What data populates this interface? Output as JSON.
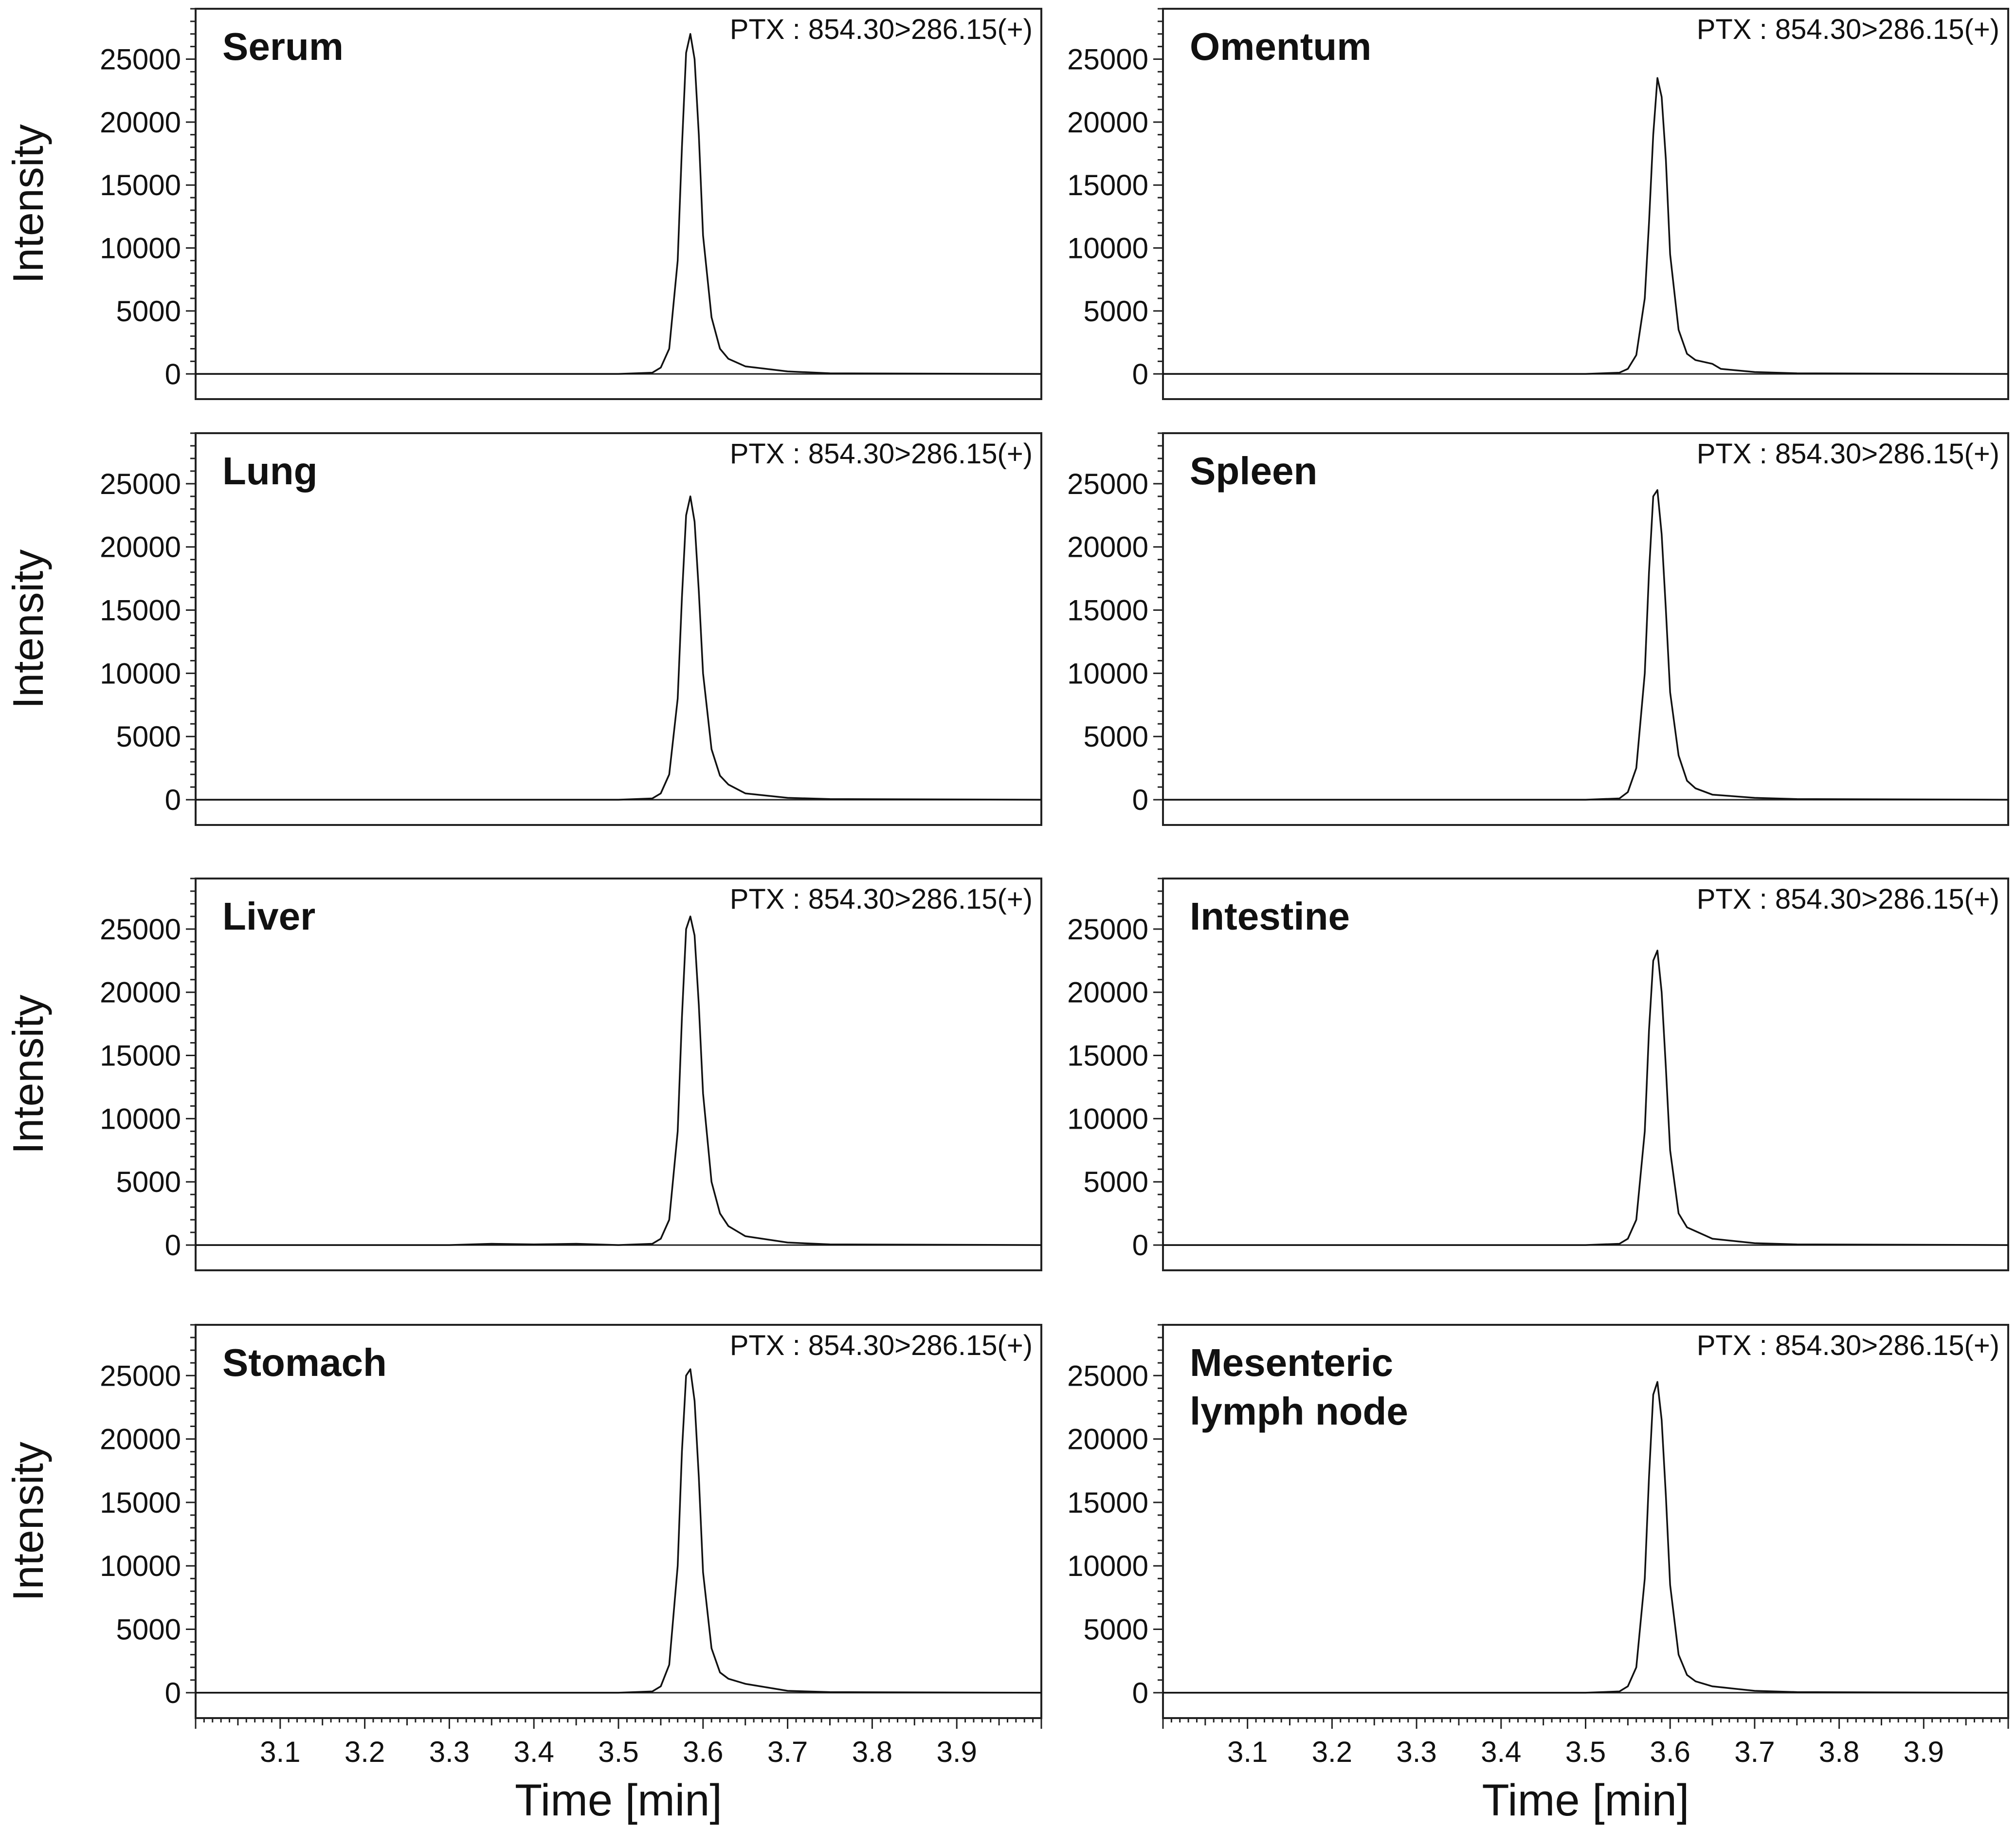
{
  "chart_data": [
    {
      "type": "line",
      "title": "Serum",
      "annotation": "PTX : 854.30>286.15(+)",
      "ylabel": "Intensity",
      "xlabel": "",
      "yticks": [
        0,
        5000,
        10000,
        15000,
        20000,
        25000
      ],
      "xticks": [
        3.1,
        3.2,
        3.3,
        3.4,
        3.5,
        3.6,
        3.7,
        3.8,
        3.9
      ],
      "xlim": [
        3.0,
        4.0
      ],
      "ylim": [
        -2000,
        29000
      ],
      "series": [
        {
          "x": [
            3.0,
            3.5,
            3.54,
            3.55,
            3.56,
            3.57,
            3.575,
            3.58,
            3.585,
            3.59,
            3.595,
            3.6,
            3.61,
            3.62,
            3.63,
            3.65,
            3.7,
            3.75,
            4.0
          ],
          "y": [
            0,
            0,
            100,
            500,
            2000,
            9000,
            18000,
            25500,
            27000,
            25000,
            19000,
            11000,
            4500,
            2000,
            1200,
            600,
            200,
            50,
            0
          ]
        }
      ]
    },
    {
      "type": "line",
      "title": "Omentum",
      "annotation": "PTX : 854.30>286.15(+)",
      "ylabel": "",
      "xlabel": "",
      "yticks": [
        0,
        5000,
        10000,
        15000,
        20000,
        25000
      ],
      "xticks": [
        3.1,
        3.2,
        3.3,
        3.4,
        3.5,
        3.6,
        3.7,
        3.8,
        3.9
      ],
      "xlim": [
        3.0,
        4.0
      ],
      "ylim": [
        -2000,
        29000
      ],
      "series": [
        {
          "x": [
            3.0,
            3.5,
            3.54,
            3.55,
            3.56,
            3.57,
            3.575,
            3.58,
            3.585,
            3.59,
            3.595,
            3.6,
            3.61,
            3.62,
            3.63,
            3.65,
            3.66,
            3.7,
            3.75,
            4.0
          ],
          "y": [
            0,
            0,
            100,
            400,
            1500,
            6000,
            12000,
            19000,
            23500,
            22000,
            17000,
            9500,
            3500,
            1600,
            1100,
            800,
            400,
            150,
            50,
            0
          ]
        }
      ]
    },
    {
      "type": "line",
      "title": "Lung",
      "annotation": "PTX : 854.30>286.15(+)",
      "ylabel": "Intensity",
      "xlabel": "",
      "yticks": [
        0,
        5000,
        10000,
        15000,
        20000,
        25000
      ],
      "xticks": [
        3.1,
        3.2,
        3.3,
        3.4,
        3.5,
        3.6,
        3.7,
        3.8,
        3.9
      ],
      "xlim": [
        3.0,
        4.0
      ],
      "ylim": [
        -2000,
        29000
      ],
      "series": [
        {
          "x": [
            3.0,
            3.5,
            3.54,
            3.55,
            3.56,
            3.57,
            3.575,
            3.58,
            3.585,
            3.59,
            3.595,
            3.6,
            3.61,
            3.62,
            3.63,
            3.65,
            3.7,
            3.75,
            4.0
          ],
          "y": [
            0,
            0,
            100,
            500,
            2000,
            8000,
            16000,
            22500,
            24000,
            22000,
            16500,
            10000,
            4000,
            1900,
            1200,
            500,
            150,
            50,
            0
          ]
        }
      ]
    },
    {
      "type": "line",
      "title": "Spleen",
      "annotation": "PTX : 854.30>286.15(+)",
      "ylabel": "",
      "xlabel": "",
      "yticks": [
        0,
        5000,
        10000,
        15000,
        20000,
        25000
      ],
      "xticks": [
        3.1,
        3.2,
        3.3,
        3.4,
        3.5,
        3.6,
        3.7,
        3.8,
        3.9
      ],
      "xlim": [
        3.0,
        4.0
      ],
      "ylim": [
        -2000,
        29000
      ],
      "series": [
        {
          "x": [
            3.0,
            3.5,
            3.54,
            3.55,
            3.56,
            3.57,
            3.575,
            3.58,
            3.585,
            3.59,
            3.595,
            3.6,
            3.61,
            3.62,
            3.63,
            3.65,
            3.7,
            3.75,
            4.0
          ],
          "y": [
            0,
            0,
            100,
            600,
            2500,
            10000,
            18000,
            24000,
            24500,
            21000,
            15000,
            8500,
            3500,
            1500,
            900,
            400,
            150,
            50,
            0
          ]
        }
      ]
    },
    {
      "type": "line",
      "title": "Liver",
      "annotation": "PTX : 854.30>286.15(+)",
      "ylabel": "Intensity",
      "xlabel": "",
      "yticks": [
        0,
        5000,
        10000,
        15000,
        20000,
        25000
      ],
      "xticks": [
        3.1,
        3.2,
        3.3,
        3.4,
        3.5,
        3.6,
        3.7,
        3.8,
        3.9
      ],
      "xlim": [
        3.0,
        4.0
      ],
      "ylim": [
        -2000,
        29000
      ],
      "series": [
        {
          "x": [
            3.0,
            3.3,
            3.35,
            3.4,
            3.45,
            3.5,
            3.54,
            3.55,
            3.56,
            3.57,
            3.575,
            3.58,
            3.585,
            3.59,
            3.595,
            3.6,
            3.61,
            3.62,
            3.63,
            3.65,
            3.7,
            3.75,
            4.0
          ],
          "y": [
            0,
            0,
            100,
            50,
            100,
            0,
            100,
            500,
            2000,
            9000,
            18000,
            25000,
            26000,
            24500,
            19000,
            12000,
            5000,
            2500,
            1500,
            700,
            200,
            50,
            0
          ]
        }
      ]
    },
    {
      "type": "line",
      "title": "Intestine",
      "annotation": "PTX : 854.30>286.15(+)",
      "ylabel": "",
      "xlabel": "",
      "yticks": [
        0,
        5000,
        10000,
        15000,
        20000,
        25000
      ],
      "xticks": [
        3.1,
        3.2,
        3.3,
        3.4,
        3.5,
        3.6,
        3.7,
        3.8,
        3.9
      ],
      "xlim": [
        3.0,
        4.0
      ],
      "ylim": [
        -2000,
        29000
      ],
      "series": [
        {
          "x": [
            3.0,
            3.5,
            3.54,
            3.55,
            3.56,
            3.57,
            3.575,
            3.58,
            3.585,
            3.59,
            3.595,
            3.6,
            3.61,
            3.62,
            3.63,
            3.65,
            3.7,
            3.75,
            4.0
          ],
          "y": [
            0,
            0,
            100,
            500,
            2000,
            9000,
            17000,
            22500,
            23300,
            20000,
            14000,
            7500,
            2500,
            1400,
            1100,
            500,
            150,
            50,
            0
          ]
        }
      ]
    },
    {
      "type": "line",
      "title": "Stomach",
      "annotation": "PTX : 854.30>286.15(+)",
      "ylabel": "Intensity",
      "xlabel": "Time [min]",
      "yticks": [
        0,
        5000,
        10000,
        15000,
        20000,
        25000
      ],
      "xticks": [
        3.1,
        3.2,
        3.3,
        3.4,
        3.5,
        3.6,
        3.7,
        3.8,
        3.9
      ],
      "xlim": [
        3.0,
        4.0
      ],
      "ylim": [
        -2000,
        29000
      ],
      "series": [
        {
          "x": [
            3.0,
            3.5,
            3.54,
            3.55,
            3.56,
            3.57,
            3.575,
            3.58,
            3.585,
            3.59,
            3.595,
            3.6,
            3.61,
            3.62,
            3.63,
            3.65,
            3.7,
            3.75,
            4.0
          ],
          "y": [
            0,
            0,
            100,
            500,
            2200,
            10000,
            19000,
            25000,
            25500,
            23000,
            17000,
            9500,
            3500,
            1600,
            1100,
            700,
            150,
            50,
            0
          ]
        }
      ]
    },
    {
      "type": "line",
      "title": "Mesenteric\nlymph node",
      "annotation": "PTX : 854.30>286.15(+)",
      "ylabel": "",
      "xlabel": "Time [min]",
      "yticks": [
        0,
        5000,
        10000,
        15000,
        20000,
        25000
      ],
      "xticks": [
        3.1,
        3.2,
        3.3,
        3.4,
        3.5,
        3.6,
        3.7,
        3.8,
        3.9
      ],
      "xlim": [
        3.0,
        4.0
      ],
      "ylim": [
        -2000,
        29000
      ],
      "series": [
        {
          "x": [
            3.0,
            3.5,
            3.54,
            3.55,
            3.56,
            3.57,
            3.575,
            3.58,
            3.585,
            3.59,
            3.595,
            3.6,
            3.61,
            3.62,
            3.63,
            3.65,
            3.7,
            3.75,
            4.0
          ],
          "y": [
            0,
            0,
            100,
            500,
            2000,
            9000,
            17000,
            23500,
            24500,
            21500,
            15500,
            8500,
            3000,
            1400,
            900,
            500,
            150,
            50,
            0
          ]
        }
      ]
    }
  ]
}
